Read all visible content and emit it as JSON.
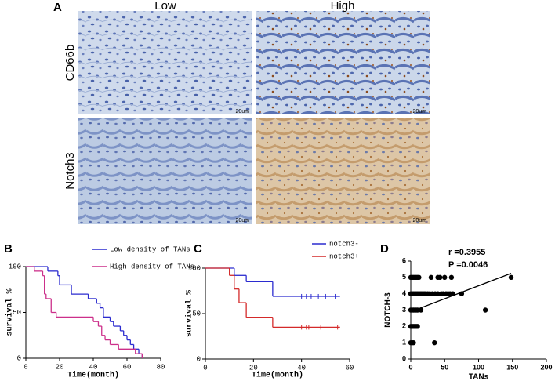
{
  "figure": {
    "panel_labels": [
      "A",
      "B",
      "C",
      "D"
    ],
    "columns": [
      "Low",
      "High"
    ],
    "rows": [
      "CD66b",
      "Notch3"
    ],
    "scale_bars": [
      "20um",
      "20um",
      "20um",
      "20um"
    ]
  },
  "chart_data": [
    {
      "type": "km",
      "x_label": "Time(month)",
      "y_label": "survival %",
      "xlim": [
        0,
        80
      ],
      "ylim": [
        0,
        100
      ],
      "xticks": [
        0,
        20,
        40,
        60,
        80
      ],
      "yticks": [
        0,
        50,
        100
      ],
      "legend": "outside-top-right",
      "series": [
        {
          "name": "Low density of TANs",
          "color": "#2b2bcf",
          "x": [
            0,
            13,
            19,
            20,
            27,
            37,
            42,
            44,
            46,
            50,
            52,
            56,
            58,
            60,
            62,
            64,
            67,
            69
          ],
          "values": [
            100,
            95,
            90,
            80,
            70,
            65,
            60,
            55,
            45,
            40,
            35,
            30,
            25,
            20,
            15,
            10,
            5,
            0
          ]
        },
        {
          "name": "High density of TANs",
          "color": "#cc2f8a",
          "x": [
            0,
            5,
            10,
            11,
            12,
            15,
            18,
            40,
            43,
            45,
            47,
            50,
            55,
            65,
            69
          ],
          "values": [
            100,
            95,
            90,
            70,
            65,
            50,
            45,
            40,
            35,
            25,
            20,
            15,
            10,
            5,
            0
          ]
        }
      ]
    },
    {
      "type": "km",
      "x_label": "Time(month)",
      "y_label": "survival %",
      "xlim": [
        0,
        60
      ],
      "ylim": [
        0,
        100
      ],
      "xticks": [
        0,
        20,
        40,
        60
      ],
      "yticks": [
        0,
        50,
        100
      ],
      "legend": "top-right",
      "series": [
        {
          "name": "notch3-",
          "color": "#2b2bcf",
          "x": [
            0,
            12,
            17,
            28,
            56
          ],
          "values": [
            100,
            92,
            85,
            69,
            69
          ],
          "censor_x": [
            40,
            42,
            44,
            47,
            50,
            54
          ],
          "censor_values": [
            69,
            69,
            69,
            69,
            69,
            69
          ]
        },
        {
          "name": "notch3+",
          "color": "#d42a2a",
          "x": [
            0,
            10,
            12,
            14,
            17,
            28,
            56
          ],
          "values": [
            100,
            92,
            77,
            62,
            46,
            35,
            35
          ],
          "censor_x": [
            40,
            42,
            43,
            48,
            55
          ],
          "censor_values": [
            35,
            35,
            35,
            35,
            35
          ]
        }
      ]
    },
    {
      "type": "scatter",
      "x_label": "TANs",
      "y_label": "NOTCH-3",
      "annotations": [
        "r =0.3955",
        "P =0.0046"
      ],
      "xlim": [
        0,
        200
      ],
      "ylim": [
        0,
        6
      ],
      "xticks": [
        0,
        50,
        100,
        150,
        200
      ],
      "yticks": [
        0,
        1,
        2,
        3,
        4,
        5,
        6
      ],
      "color": "#000000",
      "x": [
        0,
        2,
        4,
        6,
        8,
        10,
        12,
        30,
        40,
        43,
        50,
        60,
        148,
        0,
        2,
        4,
        6,
        8,
        10,
        12,
        14,
        16,
        18,
        20,
        22,
        25,
        28,
        32,
        36,
        40,
        45,
        48,
        52,
        55,
        58,
        62,
        75,
        0,
        2,
        4,
        6,
        8,
        10,
        15,
        110,
        0,
        2,
        4,
        6,
        8,
        10,
        0,
        2,
        4,
        35
      ],
      "values": [
        5,
        5,
        5,
        5,
        5,
        5,
        5,
        5,
        5,
        5,
        5,
        5,
        5,
        4,
        4,
        4,
        4,
        4,
        4,
        4,
        4,
        4,
        4,
        4,
        4,
        4,
        4,
        4,
        4,
        4,
        4,
        4,
        4,
        4,
        4,
        4,
        4,
        3,
        3,
        3,
        3,
        3,
        3,
        3,
        3,
        2,
        2,
        2,
        2,
        2,
        2,
        1,
        1,
        1,
        1
      ],
      "fit": {
        "x": [
          0,
          148
        ],
        "values": [
          2.9,
          5.25
        ]
      }
    }
  ]
}
